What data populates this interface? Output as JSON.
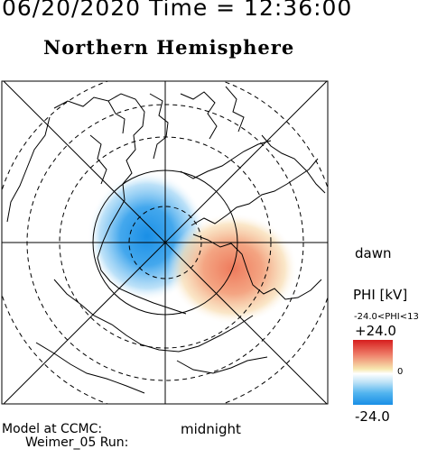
{
  "header": {
    "datetime": "06/20/2020 Time = 12:36:00",
    "hemisphere": "Northern Hemisphere"
  },
  "labels": {
    "dawn": "dawn",
    "midnight": "midnight"
  },
  "model": {
    "line1": "Model at CCMC:",
    "line2": "Weimer_05 Run:"
  },
  "colorbar": {
    "title": "PHI [kV]",
    "range": "-24.0<PHI<13",
    "max": "+24.0",
    "zero": "0",
    "min": "-24.0",
    "colors": {
      "positive": "#d61e1e",
      "neutral": "#ffffff",
      "negative": "#1a8fe6"
    }
  }
}
